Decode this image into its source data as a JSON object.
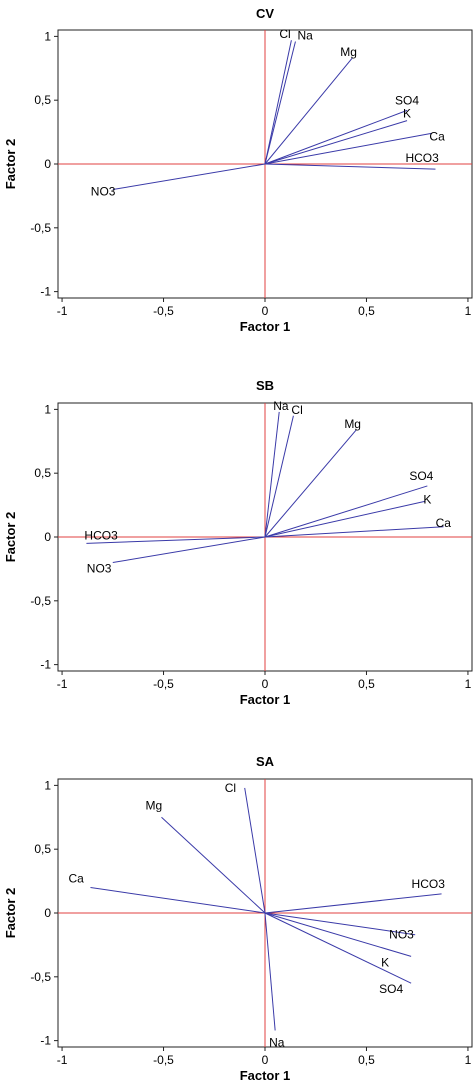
{
  "chart_data": [
    {
      "type": "scatter",
      "title": "CV",
      "xlabel": "Factor 1",
      "ylabel": "Factor 2",
      "xlim": [
        -1.02,
        1.02
      ],
      "ylim": [
        -1.05,
        1.05
      ],
      "xticks": [
        -1,
        -0.5,
        0,
        0.5,
        1
      ],
      "xtick_labels": [
        "-1",
        "-0,5",
        "0",
        "0,5",
        "1"
      ],
      "yticks": [
        1,
        0.5,
        0,
        -0.5,
        -1
      ],
      "ytick_labels": [
        "1",
        "0,5",
        "0",
        "-0,5",
        "-1"
      ],
      "grid": false,
      "reference_lines": {
        "x": 0,
        "y": 0,
        "color": "#e04040"
      },
      "vector_color": "#3a3aa8",
      "vectors": [
        {
          "name": "Cl",
          "x": 0.13,
          "y": 0.97
        },
        {
          "name": "Na",
          "x": 0.15,
          "y": 0.96
        },
        {
          "name": "Mg",
          "x": 0.43,
          "y": 0.83
        },
        {
          "name": "SO4",
          "x": 0.7,
          "y": 0.42
        },
        {
          "name": "K",
          "x": 0.7,
          "y": 0.34
        },
        {
          "name": "Ca",
          "x": 0.82,
          "y": 0.24
        },
        {
          "name": "HCO3",
          "x": 0.84,
          "y": -0.04
        },
        {
          "name": "NO3",
          "x": -0.75,
          "y": -0.2
        }
      ]
    },
    {
      "type": "scatter",
      "title": "SB",
      "xlabel": "Factor 1",
      "ylabel": "Factor 2",
      "xlim": [
        -1.02,
        1.02
      ],
      "ylim": [
        -1.05,
        1.05
      ],
      "xticks": [
        -1,
        -0.5,
        0,
        0.5,
        1
      ],
      "xtick_labels": [
        "-1",
        "-0,5",
        "0",
        "0,5",
        "1"
      ],
      "yticks": [
        1,
        0.5,
        0,
        -0.5,
        -1
      ],
      "ytick_labels": [
        "1",
        "0,5",
        "0",
        "-0,5",
        "-1"
      ],
      "grid": false,
      "reference_lines": {
        "x": 0,
        "y": 0,
        "color": "#e04040"
      },
      "vector_color": "#3a3aa8",
      "vectors": [
        {
          "name": "Na",
          "x": 0.07,
          "y": 0.98
        },
        {
          "name": "Cl",
          "x": 0.14,
          "y": 0.95
        },
        {
          "name": "Mg",
          "x": 0.45,
          "y": 0.84
        },
        {
          "name": "SO4",
          "x": 0.8,
          "y": 0.4
        },
        {
          "name": "K",
          "x": 0.79,
          "y": 0.28
        },
        {
          "name": "Ca",
          "x": 0.88,
          "y": 0.08
        },
        {
          "name": "HCO3",
          "x": -0.88,
          "y": -0.05
        },
        {
          "name": "NO3",
          "x": -0.75,
          "y": -0.2
        }
      ]
    },
    {
      "type": "scatter",
      "title": "SA",
      "xlabel": "Factor 1",
      "ylabel": "Factor 2",
      "xlim": [
        -1.02,
        1.02
      ],
      "ylim": [
        -1.05,
        1.05
      ],
      "xticks": [
        -1,
        -0.5,
        0,
        0.5,
        1
      ],
      "xtick_labels": [
        "-1",
        "-0,5",
        "0",
        "0,5",
        "1"
      ],
      "yticks": [
        1,
        0.5,
        0,
        -0.5,
        -1
      ],
      "ytick_labels": [
        "1",
        "0,5",
        "0",
        "-0,5",
        "-1"
      ],
      "grid": false,
      "reference_lines": {
        "x": 0,
        "y": 0,
        "color": "#e04040"
      },
      "vector_color": "#3a3aa8",
      "vectors": [
        {
          "name": "Cl",
          "x": -0.1,
          "y": 0.98
        },
        {
          "name": "Mg",
          "x": -0.51,
          "y": 0.75
        },
        {
          "name": "Ca",
          "x": -0.86,
          "y": 0.2
        },
        {
          "name": "HCO3",
          "x": 0.87,
          "y": 0.15
        },
        {
          "name": "NO3",
          "x": 0.74,
          "y": -0.17
        },
        {
          "name": "K",
          "x": 0.72,
          "y": -0.34
        },
        {
          "name": "SO4",
          "x": 0.72,
          "y": -0.55
        },
        {
          "name": "Na",
          "x": 0.05,
          "y": -0.92
        }
      ]
    }
  ]
}
